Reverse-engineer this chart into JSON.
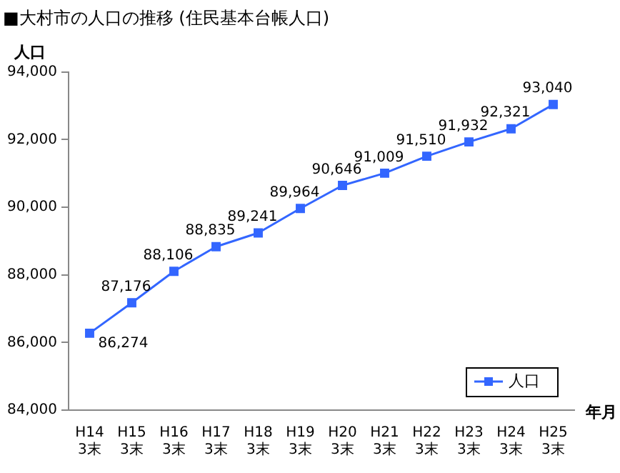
{
  "chart_data": {
    "type": "line",
    "title": "■大村市の人口の推移 (住民基本台帳人口)",
    "ylabel": "人口",
    "xlabel": "年月",
    "categories": [
      "H14\n3末",
      "H15\n3末",
      "H16\n3末",
      "H17\n3末",
      "H18\n3末",
      "H19\n3末",
      "H20\n3末",
      "H21\n3末",
      "H22\n3末",
      "H23\n3末",
      "H24\n3末",
      "H25\n3末"
    ],
    "series": [
      {
        "name": "人口",
        "color": "#3366ff",
        "values": [
          86274,
          87176,
          88106,
          88835,
          89241,
          89964,
          90646,
          91009,
          91510,
          91932,
          92321,
          93040
        ],
        "value_labels": [
          "86,274",
          "87,176",
          "88,106",
          "88,835",
          "89,241",
          "89,964",
          "90,646",
          "91,009",
          "91,510",
          "91,932",
          "92,321",
          "93,040"
        ]
      }
    ],
    "ylim": [
      84000,
      94000
    ],
    "yticks": [
      {
        "value": 84000,
        "label": "84,000"
      },
      {
        "value": 86000,
        "label": "86,000"
      },
      {
        "value": 88000,
        "label": "88,000"
      },
      {
        "value": 90000,
        "label": "90,000"
      },
      {
        "value": 92000,
        "label": "92,000"
      },
      {
        "value": 94000,
        "label": "94,000"
      }
    ],
    "grid": false,
    "legend": "bottom right",
    "marker": "square",
    "line_style": "solid"
  }
}
